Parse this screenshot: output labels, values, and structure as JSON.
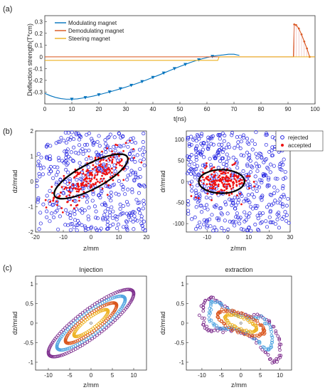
{
  "panel_labels": [
    "(a)",
    "(b)",
    "(c)"
  ],
  "colors": {
    "modulating": "#0072BD",
    "demodulating": "#D95319",
    "steering": "#EDB120",
    "rejected": "#2020e0",
    "accepted": "#ee1111",
    "ellipse": "#000000",
    "ring_purple": "#7E2F8E",
    "ring_blue": "#4DA3E0",
    "ring_orange": "#D95319",
    "ring_yellow": "#EDB120"
  },
  "chart_data": [
    {
      "type": "line",
      "id": "a",
      "xlabel": "t(ns)",
      "ylabel": "Deflection strength(T*cm)",
      "xlim": [
        0,
        100
      ],
      "ylim": [
        -0.4,
        0.35
      ],
      "xticks": [
        "0",
        "10",
        "20",
        "30",
        "40",
        "50",
        "60",
        "70",
        "80",
        "90",
        "100"
      ],
      "yticks": [
        "-0.3",
        "-0.2",
        "-0.1",
        "0",
        "0.1",
        "0.2",
        "0.3"
      ],
      "ytick_values": [
        -0.3,
        -0.2,
        -0.1,
        0,
        0.1,
        0.2,
        0.3
      ],
      "legend": "top-left",
      "series": [
        {
          "name": "Modulating magnet",
          "color_key": "modulating",
          "x": [
            0,
            2,
            4,
            6,
            8,
            10,
            12,
            14,
            16,
            18,
            20,
            22,
            24,
            26,
            28,
            30,
            32,
            34,
            36,
            38,
            40,
            42,
            44,
            46,
            48,
            50,
            52,
            54,
            56,
            58,
            60,
            62,
            64,
            65,
            66,
            68,
            70,
            72
          ],
          "y": [
            -0.31,
            -0.33,
            -0.345,
            -0.355,
            -0.36,
            -0.36,
            -0.357,
            -0.35,
            -0.342,
            -0.333,
            -0.322,
            -0.31,
            -0.298,
            -0.285,
            -0.271,
            -0.257,
            -0.242,
            -0.227,
            -0.21,
            -0.193,
            -0.175,
            -0.157,
            -0.138,
            -0.119,
            -0.1,
            -0.082,
            -0.064,
            -0.047,
            -0.032,
            -0.018,
            -0.006,
            0.004,
            0.012,
            0.014,
            0.016,
            0.022,
            0.022,
            0.012
          ],
          "marker_x": [
            10,
            15,
            20,
            24,
            28,
            32,
            36,
            40,
            44,
            48,
            52,
            57,
            62
          ],
          "marker_y": [
            -0.36,
            -0.346,
            -0.322,
            -0.298,
            -0.271,
            -0.242,
            -0.21,
            -0.175,
            -0.138,
            -0.1,
            -0.064,
            -0.025,
            0.004
          ]
        },
        {
          "name": "Demodulating magnet",
          "color_key": "demodulating",
          "x": [
            0,
            65,
            92,
            92.3,
            93,
            94,
            95,
            96,
            97,
            98,
            100
          ],
          "y": [
            0,
            0,
            0,
            0.275,
            0.27,
            0.24,
            0.19,
            0.13,
            0.07,
            0.0,
            0.0
          ],
          "marker_x": [
            92.3,
            93,
            94,
            95,
            96,
            97,
            98
          ],
          "marker_y": [
            0.275,
            0.27,
            0.24,
            0.19,
            0.13,
            0.07,
            0.0
          ]
        },
        {
          "name": "Steering magnet",
          "color_key": "steering",
          "x": [
            0,
            64,
            64.5,
            100
          ],
          "y": [
            -0.03,
            -0.03,
            0,
            0
          ]
        }
      ]
    },
    {
      "type": "scatter",
      "id": "b-left",
      "xlabel": "z/mm",
      "ylabel": "dz/mrad",
      "xlim": [
        -20,
        20
      ],
      "ylim": [
        -2,
        2
      ],
      "xticks": [
        "-20",
        "-10",
        "0",
        "10",
        "20"
      ],
      "xtick_values": [
        -20,
        -10,
        0,
        10,
        20
      ],
      "yticks": [
        "-2",
        "-1",
        "0",
        "1",
        "2"
      ],
      "ytick_values": [
        -2,
        -1,
        0,
        1,
        2
      ],
      "ellipse": {
        "cx": 0,
        "cy": 0.2,
        "rx": 11,
        "ry": 0.55,
        "angle_deg": 28
      }
    },
    {
      "type": "scatter",
      "id": "b-right",
      "xlabel": "z/mm",
      "ylabel": "dr/mrad",
      "xlim": [
        -20,
        30
      ],
      "ylim": [
        -120,
        120
      ],
      "xticks": [
        "-10",
        "0",
        "10",
        "20",
        "30"
      ],
      "xtick_values": [
        -10,
        0,
        10,
        20,
        30
      ],
      "yticks": [
        "-100",
        "-50",
        "0",
        "50",
        "100"
      ],
      "ytick_values": [
        -100,
        -50,
        0,
        50,
        100
      ],
      "legend": "top-right",
      "series": [
        {
          "name": "rejected",
          "color_key": "rejected",
          "marker": "open-circle"
        },
        {
          "name": "accepted",
          "color_key": "accepted",
          "marker": "filled-dot"
        }
      ],
      "ellipse": {
        "cx": -3,
        "cy": 0,
        "rx": 11,
        "ry": 28,
        "angle_deg": 0
      }
    },
    {
      "type": "scatter",
      "id": "c-left",
      "title": "Injection",
      "xlabel": "z/mm",
      "ylabel": "dz/mrad",
      "xlim": [
        -13,
        13
      ],
      "ylim": [
        -1.2,
        1.2
      ],
      "xticks": [
        "-10",
        "-5",
        "0",
        "5",
        "10"
      ],
      "xtick_values": [
        -10,
        -5,
        0,
        5,
        10
      ],
      "yticks": [
        "-1",
        "-0.5",
        "0",
        "0.5",
        "1"
      ],
      "ytick_values": [
        -1,
        -0.5,
        0,
        0.5,
        1
      ],
      "rings": [
        {
          "color_key": "ring_purple",
          "scale": 1.0
        },
        {
          "color_key": "ring_blue",
          "scale": 0.8
        },
        {
          "color_key": "ring_orange",
          "scale": 0.6
        },
        {
          "color_key": "ring_yellow",
          "scale": 0.4
        }
      ]
    },
    {
      "type": "scatter",
      "id": "c-right",
      "title": "extraction",
      "xlabel": "z/mm",
      "ylabel": "dz/mrad",
      "xlim": [
        -14,
        13
      ],
      "ylim": [
        -1.2,
        1.2
      ],
      "xticks": [
        "-10",
        "-5",
        "0",
        "5",
        "10"
      ],
      "xtick_values": [
        -10,
        -5,
        0,
        5,
        10
      ],
      "yticks": [
        "-1",
        "-0.5",
        "0",
        "0.5",
        "1"
      ],
      "ytick_values": [
        -1,
        -0.5,
        0,
        0.5,
        1
      ]
    }
  ]
}
